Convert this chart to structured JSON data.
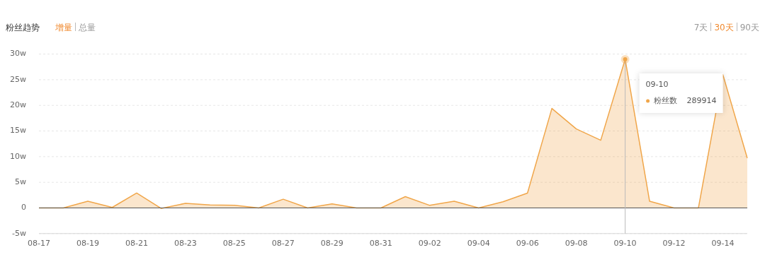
{
  "chart_data": {
    "type": "area",
    "title": "粉丝趋势",
    "annotations": [
      "增量",
      "总量",
      "7天",
      "30天",
      "90天",
      "289914"
    ],
    "categories": [
      "08-17",
      null,
      "08-19",
      null,
      "08-21",
      null,
      "08-23",
      null,
      "08-25",
      null,
      "08-27",
      null,
      "08-29",
      null,
      "08-31",
      null,
      "09-02",
      null,
      "09-04",
      null,
      "09-06",
      null,
      "09-08",
      null,
      "09-10",
      null,
      "09-12",
      null,
      "09-14",
      null
    ],
    "series": [
      {
        "name": "粉丝数",
        "color": "#f0a64a",
        "values": [
          0,
          0,
          1.3,
          0.1,
          2.9,
          -0.1,
          0.9,
          0.6,
          0.5,
          0,
          1.7,
          0,
          0.8,
          0,
          0,
          2.2,
          0.5,
          1.3,
          0,
          1.2,
          2.9,
          19.4,
          15.4,
          13.2,
          28.9914,
          1.3,
          0,
          0,
          26,
          9.7
        ]
      }
    ],
    "ref_lines": [
      {
        "axis": "x",
        "value": "09-10",
        "color": "#bbbbbb"
      }
    ],
    "ylim": [
      -5,
      30
    ],
    "yticks": [
      {
        "value": -5,
        "label": "-5w"
      },
      0,
      {
        "value": 5,
        "label": "5w"
      },
      {
        "value": 10,
        "label": "10w"
      },
      {
        "value": 15,
        "label": "15w"
      },
      {
        "value": 20,
        "label": "20w"
      },
      {
        "value": 25,
        "label": "25w"
      },
      {
        "value": 30,
        "label": "30w"
      }
    ],
    "grid": "y",
    "legend": false,
    "marker": "none",
    "line_style": "solid"
  }
}
